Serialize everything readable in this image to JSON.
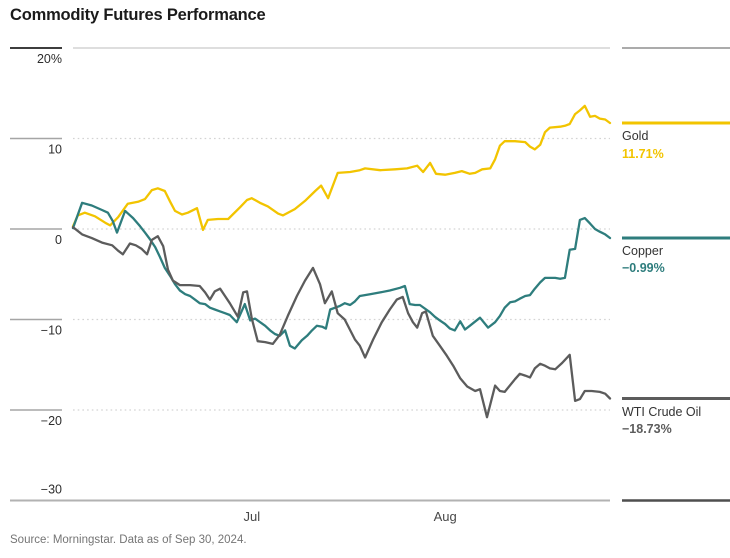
{
  "title": "Commodity Futures Performance",
  "source": "Source: Morningstar. Data as of Sep 30, 2024.",
  "colors": {
    "gold": "#F2C400",
    "copper": "#2E7D7D",
    "wti": "#5C5C5C",
    "axis_text": "#2d2d2d",
    "grid_dotted": "#d3d3d3",
    "axis_line": "#b2b2b2"
  },
  "legend": {
    "items": [
      {
        "label": "Gold",
        "value": "11.71%",
        "color": "#F2C400"
      },
      {
        "label": "Copper",
        "value": "−0.99%",
        "color": "#2E7D7D"
      },
      {
        "label": "WTI Crude Oil",
        "value": "−18.73%",
        "color": "#5C5C5C"
      }
    ]
  },
  "chart_data": {
    "type": "line",
    "title": "Commodity Futures Performance",
    "ylabel": "",
    "xlabel": "",
    "ylim": [
      -30,
      20
    ],
    "grid": "horizontal-dotted",
    "legend_position": "right",
    "y_ticks": [
      {
        "label": "20%",
        "value": 20
      },
      {
        "label": "10",
        "value": 10
      },
      {
        "label": "0",
        "value": 0
      },
      {
        "label": "−10",
        "value": -10
      },
      {
        "label": "−20",
        "value": -20
      },
      {
        "label": "−30",
        "value": -30
      }
    ],
    "x_ticks": [
      {
        "label": "Jul",
        "pos": 0.333
      },
      {
        "label": "Aug",
        "pos": 0.693
      }
    ],
    "series": [
      {
        "name": "Gold",
        "final_label": "11.71%",
        "final_value": 11.71,
        "color": "#F2C400",
        "points": [
          [
            0.0,
            0.3
          ],
          [
            0.009,
            1.5
          ],
          [
            0.022,
            1.8
          ],
          [
            0.041,
            1.4
          ],
          [
            0.06,
            0.7
          ],
          [
            0.069,
            0.4
          ],
          [
            0.084,
            1.3
          ],
          [
            0.102,
            2.8
          ],
          [
            0.121,
            3.0
          ],
          [
            0.134,
            3.3
          ],
          [
            0.147,
            4.3
          ],
          [
            0.158,
            4.5
          ],
          [
            0.171,
            4.2
          ],
          [
            0.181,
            3.0
          ],
          [
            0.19,
            2.0
          ],
          [
            0.203,
            1.6
          ],
          [
            0.214,
            1.8
          ],
          [
            0.231,
            2.3
          ],
          [
            0.242,
            -0.1
          ],
          [
            0.251,
            1.0
          ],
          [
            0.27,
            1.1
          ],
          [
            0.289,
            1.1
          ],
          [
            0.311,
            2.4
          ],
          [
            0.324,
            3.2
          ],
          [
            0.333,
            3.4
          ],
          [
            0.348,
            2.9
          ],
          [
            0.363,
            2.5
          ],
          [
            0.382,
            1.7
          ],
          [
            0.391,
            1.5
          ],
          [
            0.413,
            2.2
          ],
          [
            0.432,
            3.1
          ],
          [
            0.451,
            4.2
          ],
          [
            0.462,
            4.8
          ],
          [
            0.475,
            3.4
          ],
          [
            0.493,
            6.2
          ],
          [
            0.516,
            6.3
          ],
          [
            0.534,
            6.5
          ],
          [
            0.544,
            6.7
          ],
          [
            0.572,
            6.5
          ],
          [
            0.6,
            6.6
          ],
          [
            0.622,
            6.7
          ],
          [
            0.641,
            7.0
          ],
          [
            0.652,
            6.3
          ],
          [
            0.665,
            7.3
          ],
          [
            0.676,
            6.1
          ],
          [
            0.693,
            6.0
          ],
          [
            0.711,
            6.2
          ],
          [
            0.724,
            6.4
          ],
          [
            0.739,
            6.1
          ],
          [
            0.749,
            6.2
          ],
          [
            0.762,
            6.6
          ],
          [
            0.777,
            6.7
          ],
          [
            0.786,
            7.7
          ],
          [
            0.795,
            9.2
          ],
          [
            0.804,
            9.7
          ],
          [
            0.823,
            9.7
          ],
          [
            0.842,
            9.6
          ],
          [
            0.851,
            9.1
          ],
          [
            0.86,
            8.8
          ],
          [
            0.87,
            9.3
          ],
          [
            0.879,
            10.7
          ],
          [
            0.888,
            11.2
          ],
          [
            0.907,
            11.3
          ],
          [
            0.916,
            11.4
          ],
          [
            0.925,
            11.6
          ],
          [
            0.935,
            12.7
          ],
          [
            0.944,
            13.1
          ],
          [
            0.953,
            13.6
          ],
          [
            0.963,
            12.4
          ],
          [
            0.972,
            12.5
          ],
          [
            0.981,
            12.2
          ],
          [
            0.991,
            12.1
          ],
          [
            1.0,
            11.71
          ]
        ]
      },
      {
        "name": "Copper",
        "final_label": "−0.99%",
        "final_value": -0.99,
        "color": "#2E7D7D",
        "points": [
          [
            0.0,
            0.1
          ],
          [
            0.017,
            2.9
          ],
          [
            0.035,
            2.6
          ],
          [
            0.054,
            2.1
          ],
          [
            0.065,
            1.8
          ],
          [
            0.074,
            0.9
          ],
          [
            0.082,
            -0.4
          ],
          [
            0.097,
            2.0
          ],
          [
            0.112,
            1.2
          ],
          [
            0.125,
            0.3
          ],
          [
            0.134,
            -0.4
          ],
          [
            0.143,
            -1.1
          ],
          [
            0.153,
            -2.0
          ],
          [
            0.162,
            -3.1
          ],
          [
            0.171,
            -4.3
          ],
          [
            0.181,
            -5.2
          ],
          [
            0.19,
            -6.1
          ],
          [
            0.199,
            -6.8
          ],
          [
            0.209,
            -7.2
          ],
          [
            0.218,
            -7.4
          ],
          [
            0.227,
            -7.8
          ],
          [
            0.236,
            -8.2
          ],
          [
            0.246,
            -8.3
          ],
          [
            0.255,
            -8.7
          ],
          [
            0.264,
            -8.9
          ],
          [
            0.274,
            -9.1
          ],
          [
            0.283,
            -9.3
          ],
          [
            0.292,
            -9.5
          ],
          [
            0.305,
            -10.3
          ],
          [
            0.32,
            -8.3
          ],
          [
            0.33,
            -10.1
          ],
          [
            0.339,
            -9.9
          ],
          [
            0.358,
            -10.7
          ],
          [
            0.367,
            -11.2
          ],
          [
            0.376,
            -11.6
          ],
          [
            0.385,
            -11.8
          ],
          [
            0.395,
            -11.2
          ],
          [
            0.404,
            -12.9
          ],
          [
            0.413,
            -13.2
          ],
          [
            0.426,
            -12.3
          ],
          [
            0.436,
            -11.8
          ],
          [
            0.445,
            -11.2
          ],
          [
            0.454,
            -10.7
          ],
          [
            0.464,
            -10.8
          ],
          [
            0.471,
            -11.0
          ],
          [
            0.479,
            -8.9
          ],
          [
            0.497,
            -8.5
          ],
          [
            0.506,
            -8.2
          ],
          [
            0.516,
            -8.4
          ],
          [
            0.525,
            -8.0
          ],
          [
            0.534,
            -7.4
          ],
          [
            0.553,
            -7.2
          ],
          [
            0.572,
            -7.0
          ],
          [
            0.59,
            -6.8
          ],
          [
            0.609,
            -6.5
          ],
          [
            0.618,
            -6.3
          ],
          [
            0.627,
            -8.3
          ],
          [
            0.637,
            -8.4
          ],
          [
            0.646,
            -8.4
          ],
          [
            0.665,
            -9.2
          ],
          [
            0.674,
            -9.7
          ],
          [
            0.683,
            -10.1
          ],
          [
            0.693,
            -10.5
          ],
          [
            0.702,
            -11.0
          ],
          [
            0.711,
            -11.2
          ],
          [
            0.721,
            -10.2
          ],
          [
            0.73,
            -11.1
          ],
          [
            0.739,
            -10.7
          ],
          [
            0.758,
            -9.8
          ],
          [
            0.773,
            -10.9
          ],
          [
            0.786,
            -10.3
          ],
          [
            0.795,
            -9.6
          ],
          [
            0.804,
            -8.7
          ],
          [
            0.814,
            -8.1
          ],
          [
            0.823,
            -8.0
          ],
          [
            0.832,
            -7.7
          ],
          [
            0.842,
            -7.4
          ],
          [
            0.851,
            -7.3
          ],
          [
            0.86,
            -6.6
          ],
          [
            0.87,
            -5.9
          ],
          [
            0.879,
            -5.4
          ],
          [
            0.898,
            -5.4
          ],
          [
            0.907,
            -5.5
          ],
          [
            0.916,
            -5.4
          ],
          [
            0.925,
            -2.3
          ],
          [
            0.935,
            -2.2
          ],
          [
            0.944,
            1.0
          ],
          [
            0.953,
            1.2
          ],
          [
            0.963,
            0.6
          ],
          [
            0.972,
            0.0
          ],
          [
            0.981,
            -0.3
          ],
          [
            0.991,
            -0.6
          ],
          [
            1.0,
            -0.99
          ]
        ]
      },
      {
        "name": "WTI Crude Oil",
        "final_label": "−18.73%",
        "final_value": -18.73,
        "color": "#5C5C5C",
        "points": [
          [
            0.0,
            0.2
          ],
          [
            0.017,
            -0.6
          ],
          [
            0.035,
            -1.0
          ],
          [
            0.054,
            -1.5
          ],
          [
            0.073,
            -1.8
          ],
          [
            0.084,
            -2.4
          ],
          [
            0.093,
            -2.8
          ],
          [
            0.106,
            -1.6
          ],
          [
            0.117,
            -1.8
          ],
          [
            0.128,
            -2.2
          ],
          [
            0.138,
            -2.8
          ],
          [
            0.147,
            -1.2
          ],
          [
            0.158,
            -0.8
          ],
          [
            0.168,
            -1.9
          ],
          [
            0.177,
            -4.5
          ],
          [
            0.186,
            -5.7
          ],
          [
            0.199,
            -6.2
          ],
          [
            0.218,
            -6.2
          ],
          [
            0.236,
            -6.3
          ],
          [
            0.246,
            -7.0
          ],
          [
            0.255,
            -7.8
          ],
          [
            0.264,
            -6.9
          ],
          [
            0.274,
            -6.6
          ],
          [
            0.283,
            -7.4
          ],
          [
            0.292,
            -8.2
          ],
          [
            0.307,
            -9.7
          ],
          [
            0.317,
            -7.0
          ],
          [
            0.324,
            -6.9
          ],
          [
            0.333,
            -9.9
          ],
          [
            0.344,
            -12.4
          ],
          [
            0.358,
            -12.5
          ],
          [
            0.372,
            -12.7
          ],
          [
            0.385,
            -11.7
          ],
          [
            0.4,
            -9.6
          ],
          [
            0.417,
            -7.4
          ],
          [
            0.432,
            -5.7
          ],
          [
            0.447,
            -4.3
          ],
          [
            0.46,
            -6.1
          ],
          [
            0.469,
            -8.2
          ],
          [
            0.482,
            -6.9
          ],
          [
            0.493,
            -9.3
          ],
          [
            0.506,
            -10.0
          ],
          [
            0.525,
            -12.2
          ],
          [
            0.534,
            -12.9
          ],
          [
            0.544,
            -14.2
          ],
          [
            0.559,
            -12.2
          ],
          [
            0.575,
            -10.3
          ],
          [
            0.59,
            -8.9
          ],
          [
            0.603,
            -7.8
          ],
          [
            0.614,
            -7.5
          ],
          [
            0.624,
            -9.3
          ],
          [
            0.633,
            -10.3
          ],
          [
            0.641,
            -10.9
          ],
          [
            0.65,
            -9.3
          ],
          [
            0.657,
            -9.1
          ],
          [
            0.67,
            -11.8
          ],
          [
            0.683,
            -12.9
          ],
          [
            0.696,
            -14.0
          ],
          [
            0.708,
            -15.1
          ],
          [
            0.721,
            -16.5
          ],
          [
            0.734,
            -17.4
          ],
          [
            0.749,
            -17.9
          ],
          [
            0.758,
            -17.7
          ],
          [
            0.771,
            -20.8
          ],
          [
            0.786,
            -17.3
          ],
          [
            0.795,
            -17.9
          ],
          [
            0.804,
            -18.0
          ],
          [
            0.823,
            -16.6
          ],
          [
            0.832,
            -16.0
          ],
          [
            0.842,
            -16.2
          ],
          [
            0.851,
            -16.4
          ],
          [
            0.86,
            -15.4
          ],
          [
            0.87,
            -14.9
          ],
          [
            0.879,
            -15.1
          ],
          [
            0.888,
            -15.4
          ],
          [
            0.898,
            -15.5
          ],
          [
            0.911,
            -14.8
          ],
          [
            0.925,
            -13.9
          ],
          [
            0.935,
            -19.0
          ],
          [
            0.944,
            -18.8
          ],
          [
            0.953,
            -17.9
          ],
          [
            0.966,
            -17.9
          ],
          [
            0.981,
            -18.0
          ],
          [
            0.991,
            -18.2
          ],
          [
            1.0,
            -18.73
          ]
        ]
      }
    ]
  }
}
